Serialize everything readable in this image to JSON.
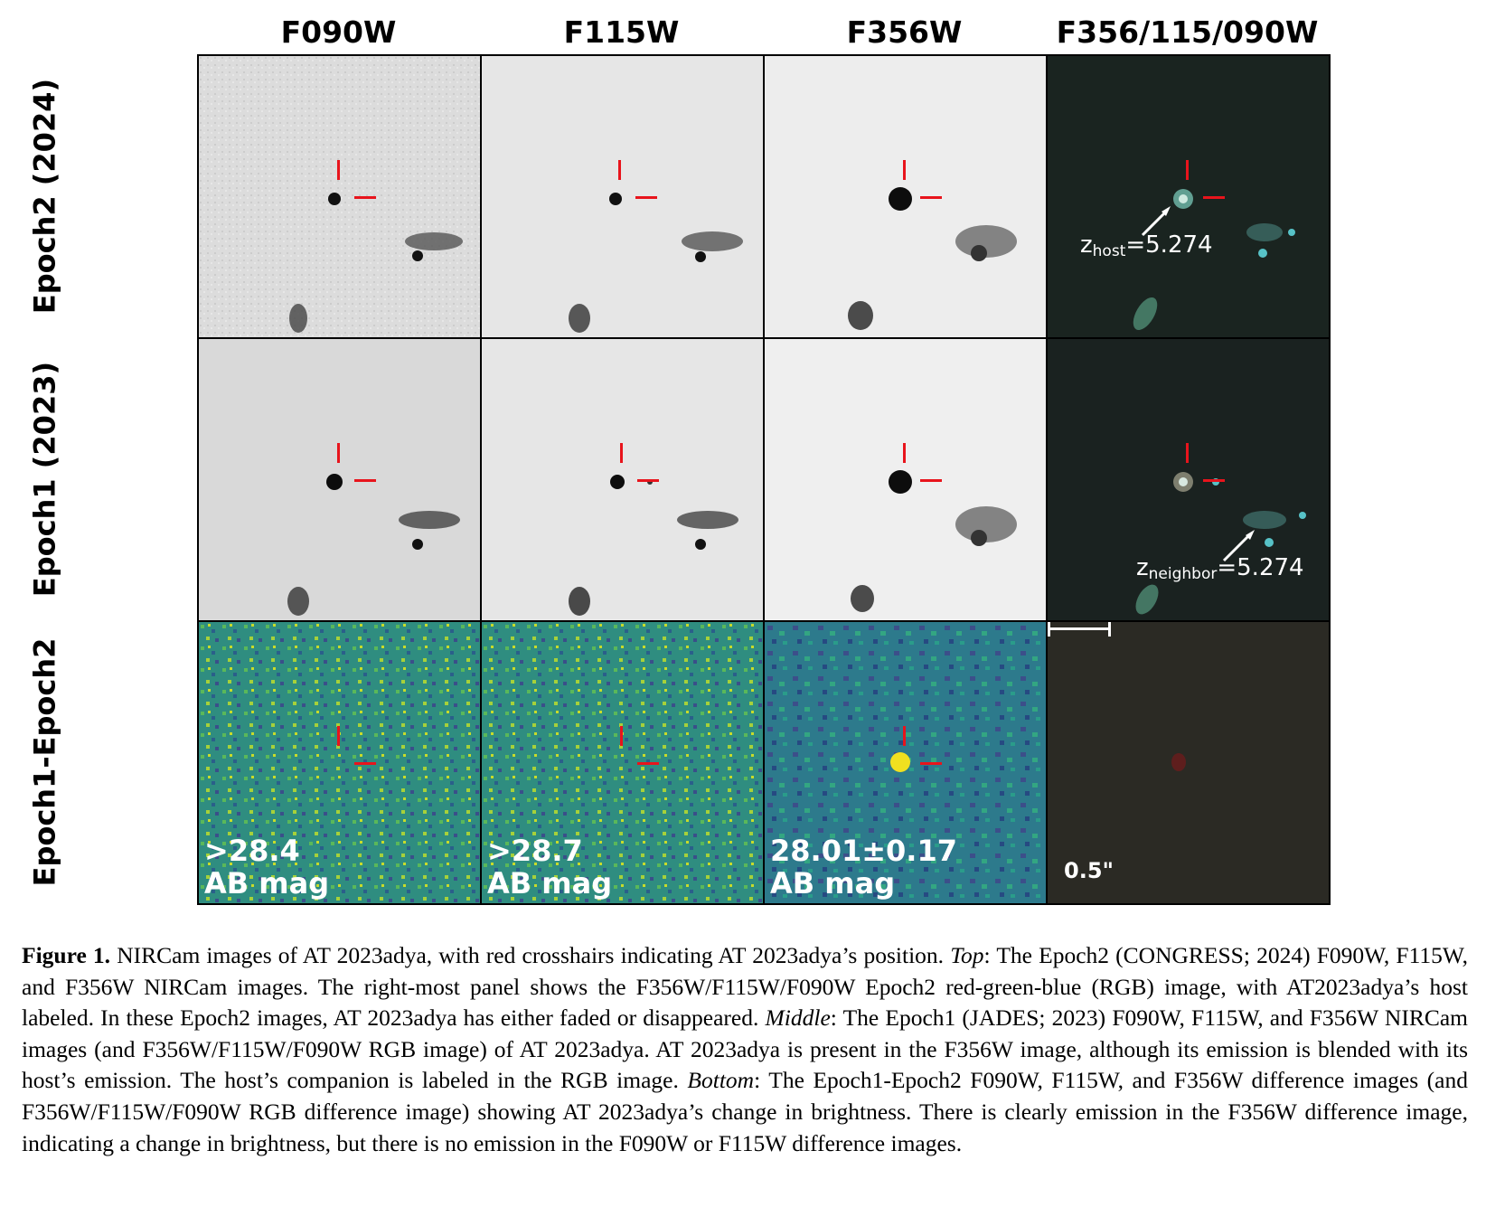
{
  "figure": {
    "columns": [
      "F090W",
      "F115W",
      "F356W",
      "F356/115/090W"
    ],
    "rows": [
      "Epoch2 (2024)",
      "Epoch1 (2023)",
      "Epoch1-Epoch2"
    ],
    "annotations": {
      "host_z_sub": "host",
      "host_z_value": "=5.274",
      "neighbor_z_sub": "neighbor",
      "neighbor_z_value": "=5.274",
      "z_symbol": "z",
      "f090w_mag_line1": ">28.4",
      "f115w_mag_line1": ">28.7",
      "f356w_mag_line1": "28.01±0.17",
      "mag_unit": "AB mag",
      "scale_bar": "0.5\""
    },
    "colors": {
      "crosshair": "#e8141c",
      "difference_low": "#2a6f8e",
      "difference_high": "#d9e021"
    }
  },
  "caption": {
    "label": "Figure 1.",
    "text1": "NIRCam images of AT 2023adya, with red crosshairs indicating AT 2023adya’s position.",
    "top_label": "Top",
    "text2": ": The Epoch2 (CONGRESS; 2024) F090W, F115W, and F356W NIRCam images. The right-most panel shows the F356W/F115W/F090W Epoch2 red-green-blue (RGB) image, with AT2023adya’s host labeled. In these Epoch2 images, AT 2023adya has either faded or disappeared.",
    "middle_label": "Middle",
    "text3": ": The Epoch1 (JADES; 2023) F090W, F115W, and F356W NIRCam images (and F356W/F115W/F090W RGB image) of AT 2023adya. AT 2023adya is present in the F356W image, although its emission is blended with its host’s emission. The host’s companion is labeled in the RGB image.",
    "bottom_label": "Bottom",
    "text4": ": The Epoch1-Epoch2 F090W, F115W, and F356W difference images (and F356W/F115W/F090W RGB difference image) showing AT 2023adya’s change in brightness. There is clearly emission in the F356W difference image, indicating a change in brightness, but there is no emission in the F090W or F115W difference images."
  }
}
